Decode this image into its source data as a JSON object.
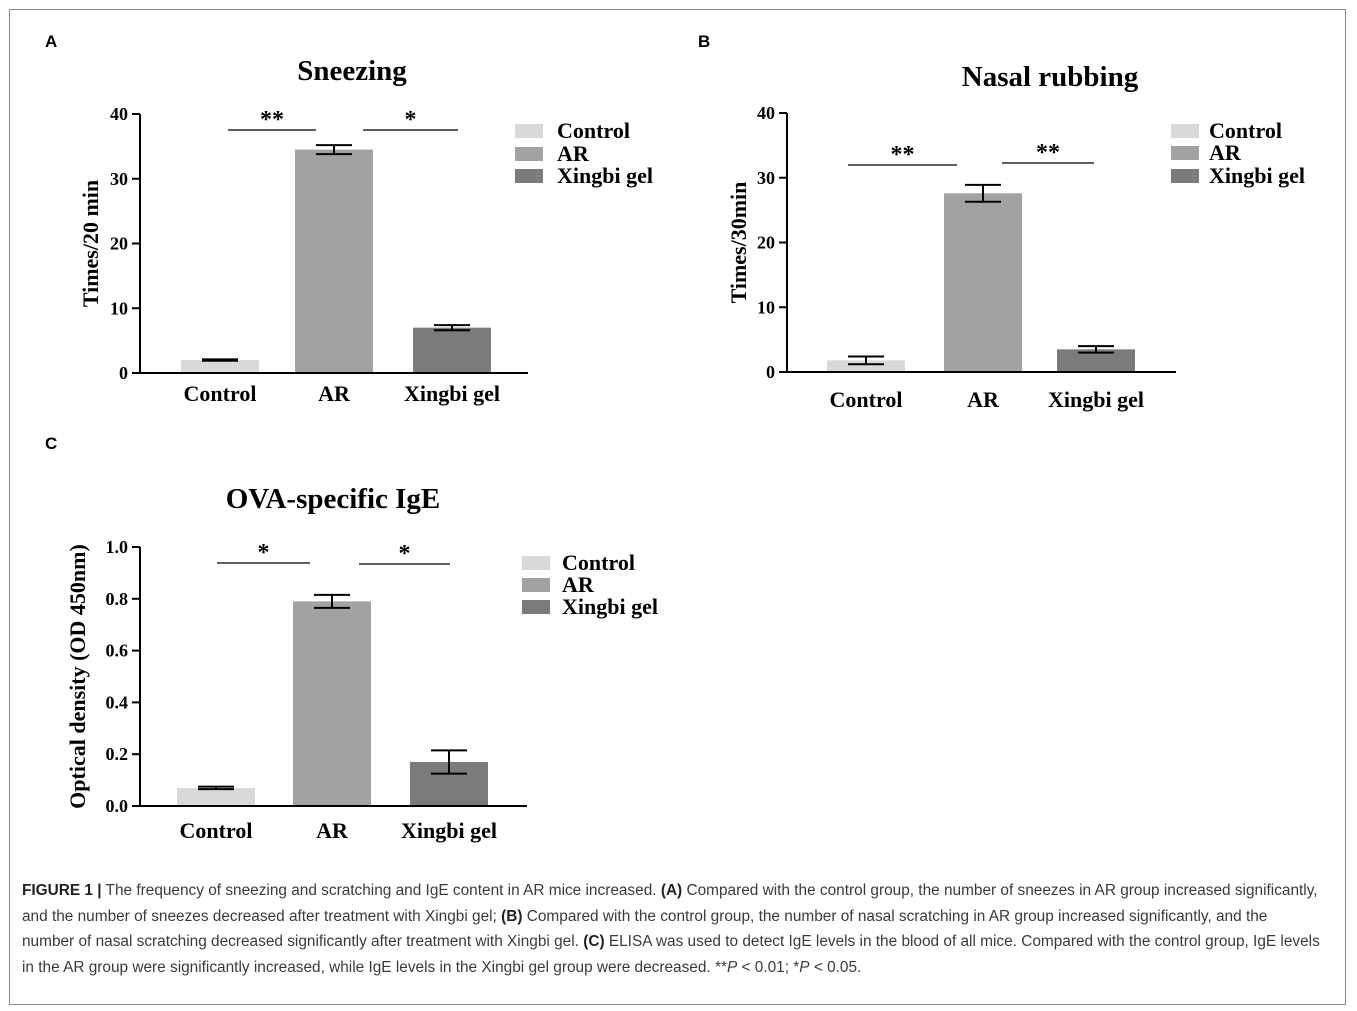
{
  "chart_data": [
    {
      "type": "bar",
      "panel": "A",
      "title": "Sneezing",
      "ylabel": "Times/20 min",
      "ylim": [
        0,
        40
      ],
      "yticks": [
        0,
        10,
        20,
        30,
        40
      ],
      "categories": [
        "Control",
        "AR",
        "Xingbi gel"
      ],
      "values": [
        2.0,
        34.5,
        7.0
      ],
      "errors": [
        0.1,
        0.7,
        0.4
      ],
      "colors": [
        "#d9d9d9",
        "#a2a2a4",
        "#7b7b7b"
      ],
      "significance": [
        {
          "from": 0,
          "to": 1,
          "label": "**"
        },
        {
          "from": 1,
          "to": 2,
          "label": "*"
        }
      ],
      "legend": [
        "Control",
        "AR",
        "Xingbi gel"
      ],
      "legend_position": "right"
    },
    {
      "type": "bar",
      "panel": "B",
      "title": "Nasal rubbing",
      "ylabel": "Times/30min",
      "ylim": [
        0,
        40
      ],
      "yticks": [
        0,
        10,
        20,
        30,
        40
      ],
      "categories": [
        "Control",
        "AR",
        "Xingbi gel"
      ],
      "values": [
        1.8,
        27.6,
        3.5
      ],
      "errors": [
        0.6,
        1.3,
        0.5
      ],
      "colors": [
        "#d9d9d9",
        "#a2a2a4",
        "#7b7b7b"
      ],
      "significance": [
        {
          "from": 0,
          "to": 1,
          "label": "**"
        },
        {
          "from": 1,
          "to": 2,
          "label": "**"
        }
      ],
      "legend": [
        "Control",
        "AR",
        "Xingbi gel"
      ],
      "legend_position": "right"
    },
    {
      "type": "bar",
      "panel": "C",
      "title": "OVA-specific IgE",
      "ylabel": "Optical density (OD 450nm)",
      "ylim": [
        0,
        1.0
      ],
      "yticks": [
        "0.0",
        "0.2",
        "0.4",
        "0.6",
        "0.8",
        "1.0"
      ],
      "categories": [
        "Control",
        "AR",
        "Xingbi gel"
      ],
      "values": [
        0.07,
        0.79,
        0.17
      ],
      "errors": [
        0.005,
        0.025,
        0.045
      ],
      "colors": [
        "#d9d9d9",
        "#a2a2a4",
        "#7b7b7b"
      ],
      "significance": [
        {
          "from": 0,
          "to": 1,
          "label": "*"
        },
        {
          "from": 1,
          "to": 2,
          "label": "*"
        }
      ],
      "legend": [
        "Control",
        "AR",
        "Xingbi gel"
      ],
      "legend_position": "right"
    }
  ],
  "caption": {
    "lead": "FIGURE 1 |",
    "intro": " The frequency of sneezing and scratching and IgE content in AR mice increased. ",
    "a_label": "(A)",
    "a_text": " Compared with the control group, the number of sneezes in AR group increased significantly, and the number of sneezes decreased after treatment with Xingbi gel; ",
    "b_label": "(B)",
    "b_text": " Compared with the control group, the number of nasal scratching in AR group increased significantly, and the number of nasal scratching decreased significantly after treatment with Xingbi gel. ",
    "c_label": "(C)",
    "c_text": " ELISA was used to detect IgE levels in the blood of all mice. Compared with the control group, IgE levels in the AR group were significantly increased, while IgE levels in the Xingbi gel group were decreased. ",
    "p_note_1": "**",
    "p_symbol_1": "P",
    "p_note_2": " < 0.01; *",
    "p_symbol_2": "P",
    "p_note_3": " < 0.05."
  }
}
